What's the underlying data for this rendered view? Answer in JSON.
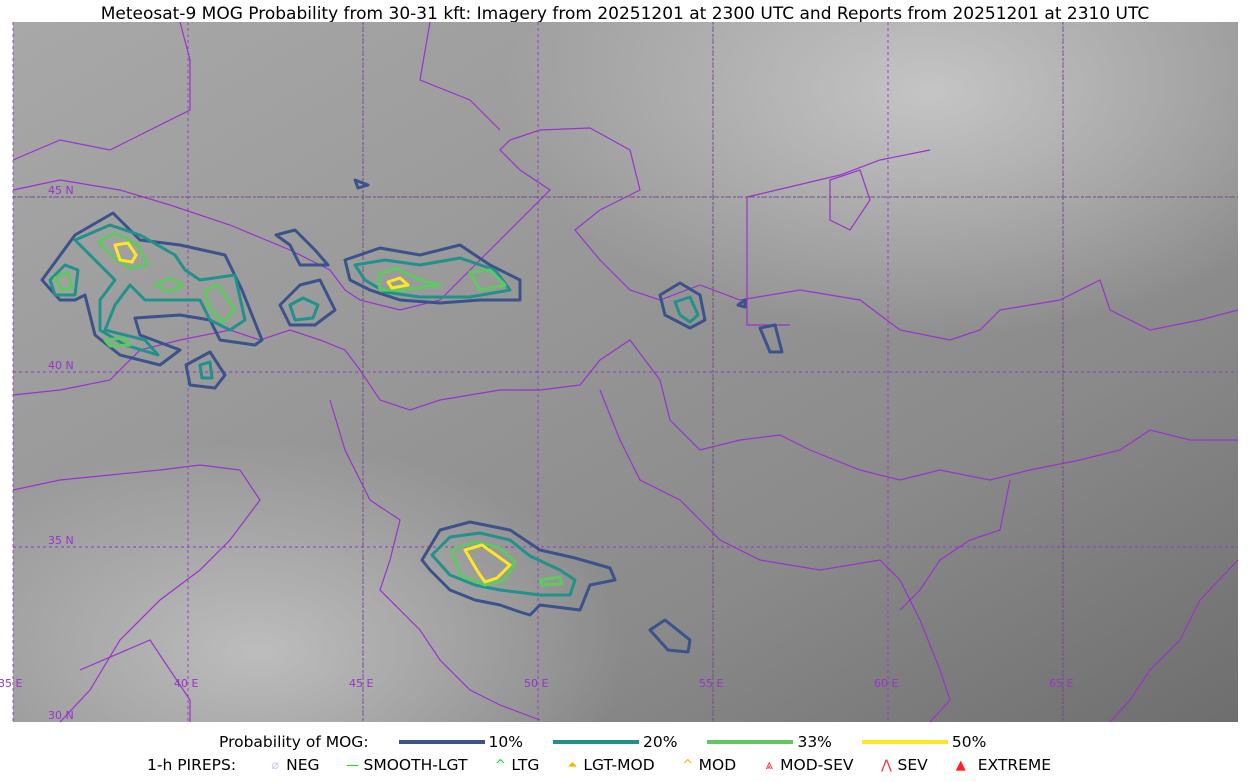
{
  "title": "Meteosat-9 MOG Probability from 30-31 kft: Imagery from 20251201 at 2300 UTC and Reports from 20251201 at 2310 UTC",
  "map": {
    "lon_labels": [
      "35 E",
      "40 E",
      "45 E",
      "50 E",
      "55 E",
      "60 E",
      "65 E"
    ],
    "lat_labels": [
      "45 N",
      "40 N",
      "35 N",
      "30 N"
    ],
    "border_color": "#9933cc"
  },
  "legend": {
    "probability_label": "Probability of MOG:",
    "levels": [
      {
        "label": "10%",
        "color": "#3b528b"
      },
      {
        "label": "20%",
        "color": "#21918c"
      },
      {
        "label": "33%",
        "color": "#5ec962"
      },
      {
        "label": "50%",
        "color": "#fde725"
      }
    ],
    "pireps_label": "1-h PIREPS:",
    "pireps": [
      {
        "label": "NEG",
        "color": "#c8c8ff",
        "icon": "neg-icon"
      },
      {
        "label": "SMOOTH-LGT",
        "color": "#00ee00",
        "icon": "smooth-lgt-icon"
      },
      {
        "label": "LTG",
        "color": "#00ee00",
        "icon": "ltg-icon"
      },
      {
        "label": "LGT-MOD",
        "color": "#ffb000",
        "icon": "lgt-mod-icon"
      },
      {
        "label": "MOD",
        "color": "#ffb000",
        "icon": "mod-icon"
      },
      {
        "label": "MOD-SEV",
        "color": "#ff2020",
        "icon": "mod-sev-icon"
      },
      {
        "label": "SEV",
        "color": "#ff2020",
        "icon": "sev-icon"
      },
      {
        "label": "EXTREME",
        "color": "#ff2020",
        "icon": "extreme-icon"
      }
    ]
  }
}
